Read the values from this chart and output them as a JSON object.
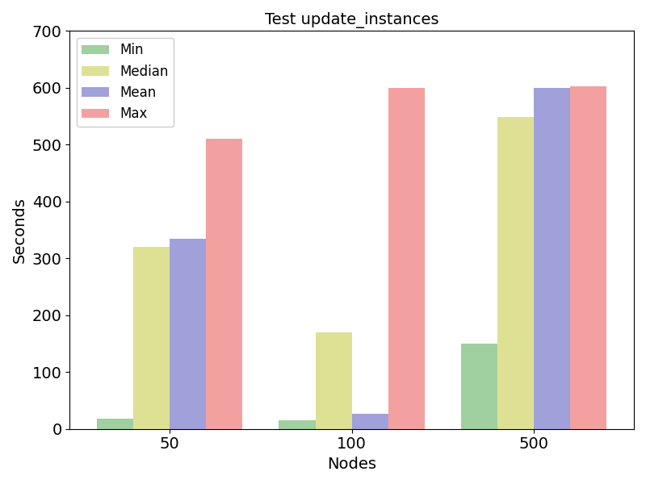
{
  "title": "Test update_instances",
  "xlabel": "Nodes",
  "ylabel": "Seconds",
  "categories": [
    "50",
    "100",
    "500"
  ],
  "series": {
    "Min": [
      18,
      15,
      150
    ],
    "Median": [
      320,
      170,
      548
    ],
    "Mean": [
      335,
      27,
      600
    ],
    "Max": [
      510,
      600,
      602
    ]
  },
  "colors": {
    "Min": "#80c080",
    "Median": "#d4d870",
    "Mean": "#8080d0",
    "Max": "#f08080"
  },
  "ylim": [
    0,
    700
  ],
  "yticks": [
    0,
    100,
    200,
    300,
    400,
    500,
    600,
    700
  ],
  "legend_labels": [
    "Min",
    "Median",
    "Mean",
    "Max"
  ],
  "figsize": [
    8,
    6
  ],
  "dpi": 100,
  "bar_width": 0.2,
  "alpha": 0.75,
  "tick_fontsize": 14,
  "label_fontsize": 14,
  "title_fontsize": 14,
  "legend_fontsize": 12
}
